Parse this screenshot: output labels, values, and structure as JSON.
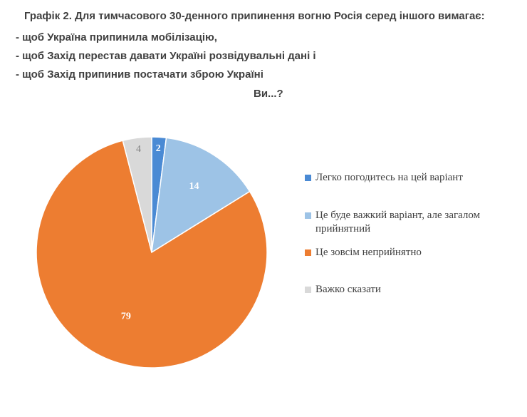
{
  "title": {
    "line1": "Графік 2. Для тимчасового 30-денного припинення вогню Росія серед іншого вимагає:",
    "line2": "- щоб Україна припинила мобілізацію,",
    "line3": "- щоб Захід перестав давати Україні розвідувальні дані і",
    "line4": "- щоб Захід припинив постачати зброю Україні",
    "line5": "Ви...?"
  },
  "chart_data": {
    "type": "pie",
    "title": "Графік 2. Для тимчасового 30-денного припинення вогню Росія серед іншого вимагає: - щоб Україна припинила мобілізацію, - щоб Захід перестав давати Україні розвідувальні дані і - щоб Захід припинив постачати зброю Україні Ви...?",
    "categories": [
      "Легко погодитесь на цей варіант",
      "Це буде важкий варіант, але загалом прийнятний",
      "Це зовсім неприйнятно",
      "Важко сказати"
    ],
    "values": [
      2,
      14,
      79,
      4
    ],
    "value_labels": [
      "2",
      "14",
      "79",
      "4"
    ],
    "colors": [
      "#4a8ad4",
      "#9dc3e6",
      "#ed7d31",
      "#d9d9d9"
    ],
    "start": "12 o'clock",
    "direction": "clockwise",
    "legend_position": "right"
  },
  "legend": [
    {
      "label": "Легко погодитесь на цей варіант",
      "color": "#4a8ad4"
    },
    {
      "label": "Це буде важкий варіант, але загалом прийнятний",
      "color": "#9dc3e6"
    },
    {
      "label": "Це зовсім неприйнятно",
      "color": "#ed7d31"
    },
    {
      "label": "Важко сказати",
      "color": "#d9d9d9"
    }
  ]
}
